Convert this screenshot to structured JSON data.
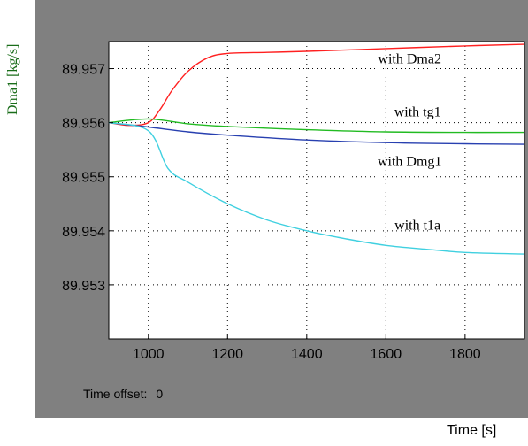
{
  "time_offset": {
    "label": "Time offset:",
    "value": "0"
  },
  "chart_data": {
    "type": "line",
    "title": "",
    "xlabel": "Time [s]",
    "ylabel": "Dma1 [kg/s]",
    "xlim": [
      900,
      1950
    ],
    "ylim": [
      89.952,
      89.9575
    ],
    "xticks": [
      1000,
      1200,
      1400,
      1600,
      1800
    ],
    "xtick_labels": [
      "1000",
      "1200",
      "1400",
      "1600",
      "1800"
    ],
    "yticks": [
      89.953,
      89.954,
      89.955,
      89.956,
      89.957
    ],
    "ytick_labels": [
      "89.953",
      "89.954",
      "89.955",
      "89.956",
      "89.957"
    ],
    "grid": true,
    "series": [
      {
        "name": "with Dma2",
        "color": "#ff2020",
        "x": [
          900,
          950,
          1000,
          1030,
          1060,
          1100,
          1150,
          1200,
          1300,
          1400,
          1600,
          1800,
          1950
        ],
        "y": [
          89.956,
          89.95595,
          89.956,
          89.95625,
          89.9566,
          89.95695,
          89.9572,
          89.95728,
          89.9573,
          89.95732,
          89.95737,
          89.95742,
          89.95745
        ]
      },
      {
        "name": "with tg1",
        "color": "#22bb22",
        "x": [
          900,
          1000,
          1100,
          1200,
          1400,
          1600,
          1800,
          1950
        ],
        "y": [
          89.956,
          89.95607,
          89.95598,
          89.95593,
          89.95587,
          89.95583,
          89.95582,
          89.95582
        ]
      },
      {
        "name": "with Dmg1",
        "color": "#2840b0",
        "x": [
          900,
          1000,
          1100,
          1200,
          1400,
          1600,
          1800,
          1950
        ],
        "y": [
          89.956,
          89.95592,
          89.95583,
          89.95577,
          89.95568,
          89.95563,
          89.95561,
          89.9556
        ]
      },
      {
        "name": "with t1a",
        "color": "#40d0e0",
        "x": [
          900,
          1000,
          1050,
          1100,
          1200,
          1300,
          1400,
          1500,
          1600,
          1700,
          1800,
          1950
        ],
        "y": [
          89.956,
          89.95585,
          89.95515,
          89.9549,
          89.9545,
          89.9542,
          89.954,
          89.95385,
          89.95373,
          89.95366,
          89.9536,
          89.95357
        ]
      }
    ],
    "annotations": [
      {
        "text": "with Dma2",
        "x": 1660,
        "y": 89.9571
      },
      {
        "text": "with tg1",
        "x": 1680,
        "y": 89.95612
      },
      {
        "text": "with Dmg1",
        "x": 1660,
        "y": 89.9552
      },
      {
        "text": "with t1a",
        "x": 1680,
        "y": 89.95402
      }
    ]
  }
}
